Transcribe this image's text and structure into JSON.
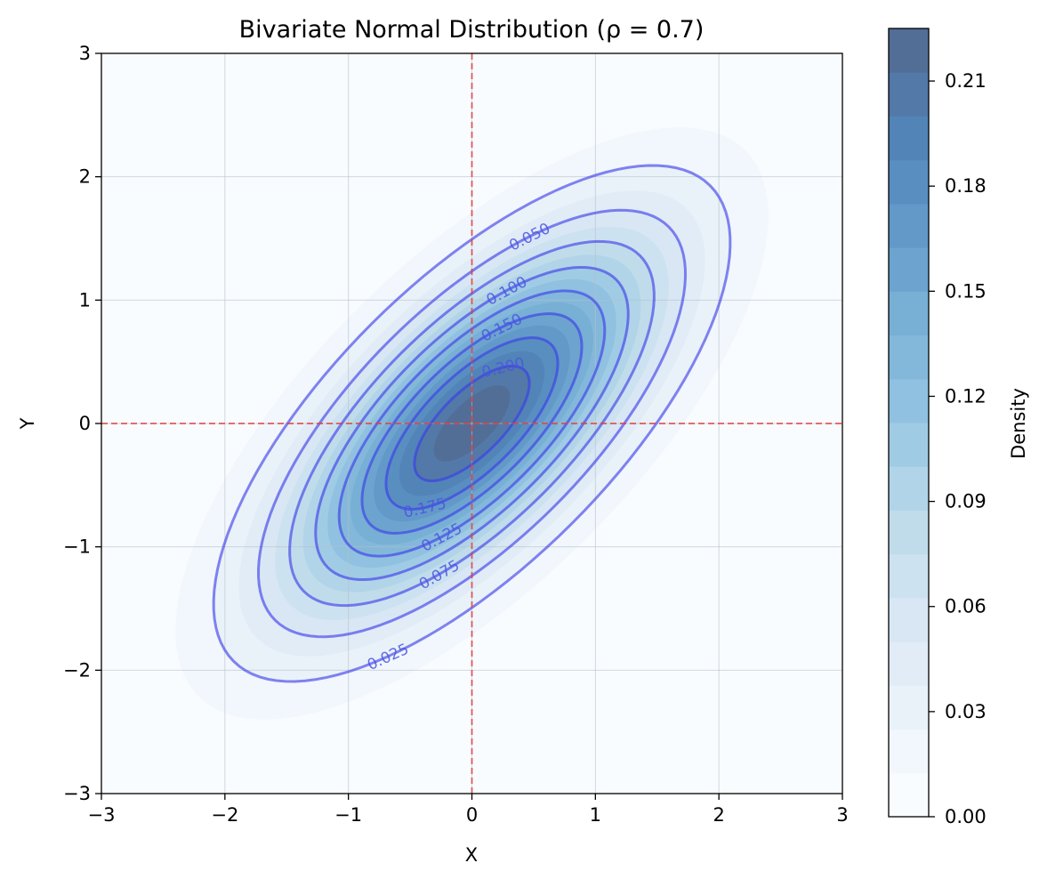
{
  "chart_data": {
    "type": "contour",
    "title": "Bivariate Normal Distribution (ρ = 0.7)",
    "xlabel": "X",
    "ylabel": "Y",
    "xlim": [
      -3,
      3
    ],
    "ylim": [
      -3,
      3
    ],
    "xticks": [
      -3,
      -2,
      -1,
      0,
      1,
      2,
      3
    ],
    "yticks": [
      -3,
      -2,
      -1,
      0,
      1,
      2,
      3
    ],
    "xtick_labels": [
      "−3",
      "−2",
      "−1",
      "0",
      "1",
      "2",
      "3"
    ],
    "ytick_labels": [
      "−3",
      "−2",
      "−1",
      "0",
      "1",
      "2",
      "3"
    ],
    "grid": true,
    "correlation": 0.7,
    "mean": [
      0,
      0
    ],
    "reference_lines": [
      {
        "orientation": "vertical",
        "value": 0,
        "color": "#e04040",
        "style": "dashed"
      },
      {
        "orientation": "horizontal",
        "value": 0,
        "color": "#e04040",
        "style": "dashed"
      }
    ],
    "contour_levels": [
      0.025,
      0.05,
      0.075,
      0.1,
      0.125,
      0.15,
      0.175,
      0.2
    ],
    "contour_labels": [
      {
        "text": "0.025",
        "level": 0.025
      },
      {
        "text": "0.050",
        "level": 0.05
      },
      {
        "text": "0.075",
        "level": 0.075
      },
      {
        "text": "0.100",
        "level": 0.1
      },
      {
        "text": "0.125",
        "level": 0.125
      },
      {
        "text": "0.150",
        "level": 0.15
      },
      {
        "text": "0.175",
        "level": 0.175
      },
      {
        "text": "0.200",
        "level": 0.2
      }
    ],
    "contour_line_color": "#3a3ae8",
    "filled_levels": [
      0.0,
      0.0125,
      0.025,
      0.0375,
      0.05,
      0.0625,
      0.075,
      0.0875,
      0.1,
      0.1125,
      0.125,
      0.1375,
      0.15,
      0.1625,
      0.175,
      0.1875,
      0.2,
      0.2125,
      0.225
    ],
    "colorbar": {
      "label": "Density",
      "min": 0.0,
      "max": 0.225,
      "ticks": [
        0.0,
        0.03,
        0.06,
        0.09,
        0.12,
        0.15,
        0.18,
        0.21
      ],
      "tick_labels": [
        "0.00",
        "0.03",
        "0.06",
        "0.09",
        "0.12",
        "0.15",
        "0.18",
        "0.21"
      ],
      "colormap": "Blues",
      "alpha": 0.7
    }
  }
}
